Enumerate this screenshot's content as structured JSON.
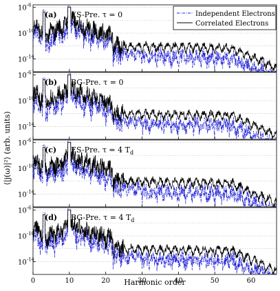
{
  "chart_data": {
    "type": "line",
    "xlabel": "Harmonic order",
    "ylabel": "⟨|j(ω)|²⟩ (arb. units)",
    "xlim": [
      0,
      67
    ],
    "ylim_log10": [
      -16,
      -5.6
    ],
    "x_ticks": [
      "0",
      "10",
      "20",
      "30",
      "40",
      "50",
      "60"
    ],
    "y_ticks": [
      {
        "base": "10",
        "exp": "-6"
      },
      {
        "base": "10",
        "exp": "-10"
      },
      {
        "base": "10",
        "exp": "-14"
      }
    ],
    "grid": "horizontal-dotted",
    "legend_position": "top-right",
    "series": [
      {
        "name": "Independent Electrons",
        "style": "dash-dot",
        "color": "#1f1fd8"
      },
      {
        "name": "Correlated Electrons",
        "style": "solid",
        "color": "#000000"
      }
    ],
    "panels": [
      {
        "letter": "(a)",
        "title": "ES-Pre. τ = 0"
      },
      {
        "letter": "(b)",
        "title": "BG-Pre. τ = 0"
      },
      {
        "letter": "(c)",
        "title": "ES-Pre. τ = 4 T",
        "title_sub": "d"
      },
      {
        "letter": "(d)",
        "title": "BG-Pre. τ = 4 T",
        "title_sub": "d"
      }
    ]
  }
}
